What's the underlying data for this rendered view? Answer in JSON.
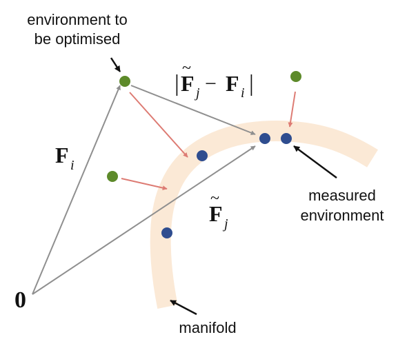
{
  "labels": {
    "env_opt_line1": "environment to",
    "env_opt_line2": "be optimised",
    "distance_expr": "|F̃j − Fi|",
    "distance_open": "|",
    "distance_F1": "F",
    "distance_tilde": "~",
    "distance_j": "j",
    "distance_minus": "−",
    "distance_F2": "F",
    "distance_i": "i",
    "distance_close": "|",
    "Fi_F": "F",
    "Fi_i": "i",
    "Fj_F": "F",
    "Fj_tilde": "~",
    "Fj_j": "j",
    "origin": "0",
    "measured_line1": "measured",
    "measured_line2": "environment",
    "manifold": "manifold"
  },
  "colors": {
    "manifold_band": "#fbe9d6",
    "green_point": "#5d8a2a",
    "blue_point": "#2f4d8f",
    "gray_arrow": "#8f8f8f",
    "red_arrow": "#dd7b73",
    "black_arrow": "#111111"
  }
}
